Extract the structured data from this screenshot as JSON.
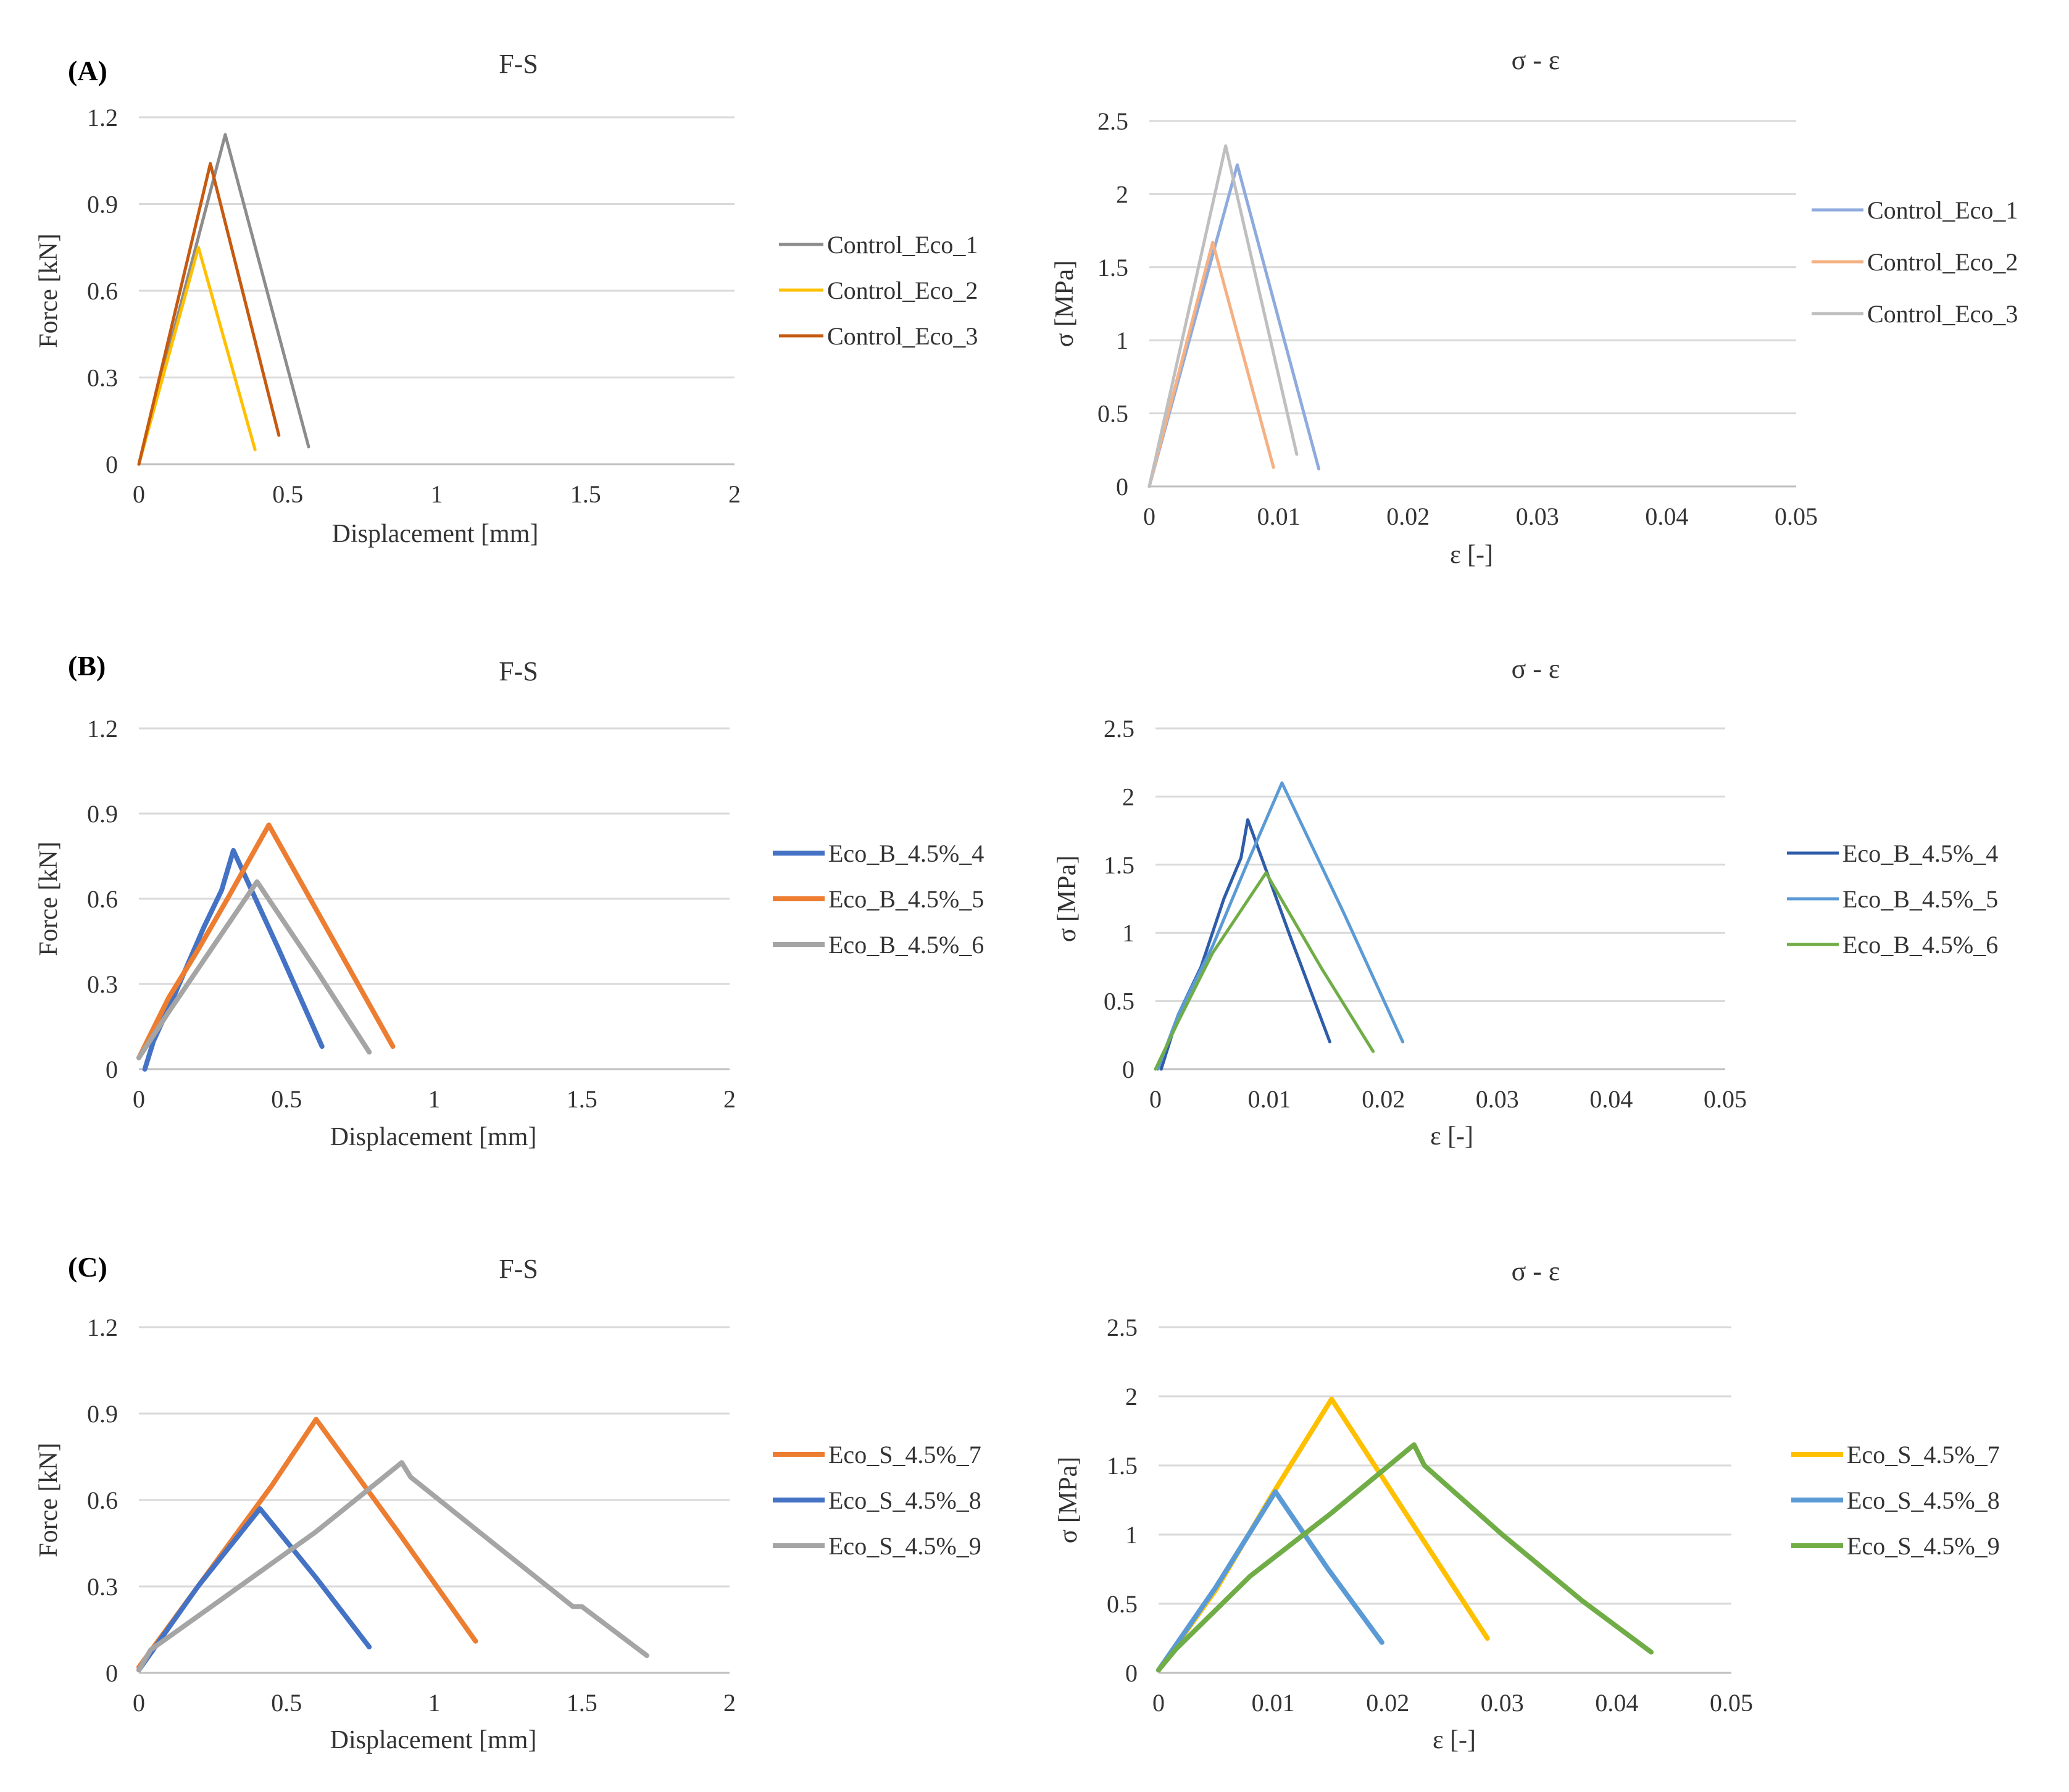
{
  "chart_data": [
    {
      "panel": "(A)",
      "type": "line",
      "title": "F-S",
      "xlabel": "Displacement [mm]",
      "ylabel": "Force [kN]",
      "xlim": [
        0,
        2
      ],
      "ylim": [
        0,
        1.2
      ],
      "xticks": [
        "0",
        "0.5",
        "1",
        "1.5",
        "2"
      ],
      "yticks": [
        "0",
        "0.3",
        "0.6",
        "0.9",
        "1.2"
      ],
      "legend_position": "right",
      "series": [
        {
          "name": "Control_Eco_1",
          "color": "#8c8c8c",
          "width": "thin",
          "points": [
            [
              0,
              0
            ],
            [
              0.29,
              1.14
            ],
            [
              0.57,
              0.06
            ]
          ]
        },
        {
          "name": "Control_Eco_2",
          "color": "#ffc000",
          "width": "thin",
          "points": [
            [
              0,
              0
            ],
            [
              0.2,
              0.75
            ],
            [
              0.39,
              0.05
            ]
          ]
        },
        {
          "name": "Control_Eco_3",
          "color": "#c55a11",
          "width": "thin",
          "points": [
            [
              0,
              0
            ],
            [
              0.24,
              1.04
            ],
            [
              0.47,
              0.1
            ]
          ]
        }
      ]
    },
    {
      "panel": "",
      "type": "line",
      "title": "σ - ε",
      "xlabel": "ε [-]",
      "ylabel": "σ [MPa]",
      "xlim": [
        0,
        0.05
      ],
      "ylim": [
        0,
        2.5
      ],
      "xticks": [
        "0",
        "0.01",
        "0.02",
        "0.03",
        "0.04",
        "0.05"
      ],
      "yticks": [
        "0",
        "0.5",
        "1",
        "1.5",
        "2",
        "2.5"
      ],
      "legend_position": "right",
      "series": [
        {
          "name": "Control_Eco_1",
          "color": "#8faadc",
          "width": "thin",
          "points": [
            [
              0,
              0
            ],
            [
              0.0068,
              2.2
            ],
            [
              0.0131,
              0.12
            ]
          ]
        },
        {
          "name": "Control_Eco_2",
          "color": "#f4b183",
          "width": "thin",
          "points": [
            [
              0,
              0
            ],
            [
              0.0049,
              1.67
            ],
            [
              0.0096,
              0.13
            ]
          ]
        },
        {
          "name": "Control_Eco_3",
          "color": "#bfbfbf",
          "width": "thin",
          "points": [
            [
              0,
              0
            ],
            [
              0.0059,
              2.33
            ],
            [
              0.0114,
              0.22
            ]
          ]
        }
      ]
    },
    {
      "panel": "(B)",
      "type": "line",
      "title": "F-S",
      "xlabel": "Displacement [mm]",
      "ylabel": "Force [kN]",
      "xlim": [
        0,
        2
      ],
      "ylim": [
        0,
        1.2
      ],
      "xticks": [
        "0",
        "0.5",
        "1",
        "1.5",
        "2"
      ],
      "yticks": [
        "0",
        "0.3",
        "0.6",
        "0.9",
        "1.2"
      ],
      "legend_position": "right",
      "series": [
        {
          "name": "Eco_B_4.5%_4",
          "color": "#4472c4",
          "width": "thick",
          "points": [
            [
              0.02,
              0
            ],
            [
              0.05,
              0.1
            ],
            [
              0.12,
              0.26
            ],
            [
              0.22,
              0.5
            ],
            [
              0.28,
              0.63
            ],
            [
              0.32,
              0.77
            ],
            [
              0.47,
              0.43
            ],
            [
              0.62,
              0.08
            ]
          ]
        },
        {
          "name": "Eco_B_4.5%_5",
          "color": "#ed7d31",
          "width": "thick",
          "points": [
            [
              0,
              0.04
            ],
            [
              0.1,
              0.25
            ],
            [
              0.2,
              0.42
            ],
            [
              0.3,
              0.6
            ],
            [
              0.44,
              0.86
            ],
            [
              0.65,
              0.47
            ],
            [
              0.86,
              0.08
            ]
          ]
        },
        {
          "name": "Eco_B_4.5%_6",
          "color": "#a5a5a5",
          "width": "thick",
          "points": [
            [
              0,
              0.04
            ],
            [
              0.1,
              0.2
            ],
            [
              0.25,
              0.43
            ],
            [
              0.4,
              0.66
            ],
            [
              0.6,
              0.35
            ],
            [
              0.78,
              0.06
            ]
          ]
        }
      ]
    },
    {
      "panel": "",
      "type": "line",
      "title": "σ - ε",
      "xlabel": "ε [-]",
      "ylabel": "σ [MPa]",
      "xlim": [
        0,
        0.05
      ],
      "ylim": [
        0,
        2.5
      ],
      "xticks": [
        "0",
        "0.01",
        "0.02",
        "0.03",
        "0.04",
        "0.05"
      ],
      "yticks": [
        "0",
        "0.5",
        "1",
        "1.5",
        "2",
        "2.5"
      ],
      "legend_position": "right",
      "series": [
        {
          "name": "Eco_B_4.5%_4",
          "color": "#2e5ca8",
          "width": "thin",
          "points": [
            [
              0.0005,
              0
            ],
            [
              0.002,
              0.4
            ],
            [
              0.004,
              0.75
            ],
            [
              0.006,
              1.25
            ],
            [
              0.0075,
              1.55
            ],
            [
              0.0081,
              1.83
            ],
            [
              0.0118,
              0.98
            ],
            [
              0.0153,
              0.2
            ]
          ]
        },
        {
          "name": "Eco_B_4.5%_5",
          "color": "#5b9bd5",
          "width": "thin",
          "points": [
            [
              0.0002,
              0
            ],
            [
              0.002,
              0.4
            ],
            [
              0.005,
              0.9
            ],
            [
              0.008,
              1.5
            ],
            [
              0.0111,
              2.1
            ],
            [
              0.0165,
              1.15
            ],
            [
              0.0217,
              0.2
            ]
          ]
        },
        {
          "name": "Eco_B_4.5%_6",
          "color": "#70ad47",
          "width": "thin",
          "points": [
            [
              0,
              0
            ],
            [
              0.002,
              0.35
            ],
            [
              0.005,
              0.85
            ],
            [
              0.0097,
              1.44
            ],
            [
              0.0145,
              0.75
            ],
            [
              0.0191,
              0.13
            ]
          ]
        }
      ]
    },
    {
      "panel": "(C)",
      "type": "line",
      "title": "F-S",
      "xlabel": "Displacement [mm]",
      "ylabel": "Force [kN]",
      "xlim": [
        0,
        2
      ],
      "ylim": [
        0,
        1.2
      ],
      "xticks": [
        "0",
        "0.5",
        "1",
        "1.5",
        "2"
      ],
      "yticks": [
        "0",
        "0.3",
        "0.6",
        "0.9",
        "1.2"
      ],
      "legend_position": "right",
      "series": [
        {
          "name": "Eco_S_4.5%_7",
          "color": "#ed7d31",
          "width": "thick",
          "points": [
            [
              0,
              0.02
            ],
            [
              0.2,
              0.3
            ],
            [
              0.45,
              0.65
            ],
            [
              0.6,
              0.88
            ],
            [
              0.87,
              0.5
            ],
            [
              1.14,
              0.11
            ]
          ]
        },
        {
          "name": "Eco_S_4.5%_8",
          "color": "#4472c4",
          "width": "thick",
          "points": [
            [
              0,
              0.01
            ],
            [
              0.2,
              0.3
            ],
            [
              0.41,
              0.57
            ],
            [
              0.6,
              0.33
            ],
            [
              0.78,
              0.09
            ]
          ]
        },
        {
          "name": "Eco_S_4.5%_9",
          "color": "#a5a5a5",
          "width": "thick",
          "points": [
            [
              0,
              0.01
            ],
            [
              0.04,
              0.08
            ],
            [
              0.3,
              0.27
            ],
            [
              0.6,
              0.49
            ],
            [
              0.89,
              0.73
            ],
            [
              0.92,
              0.68
            ],
            [
              1.2,
              0.45
            ],
            [
              1.47,
              0.23
            ],
            [
              1.5,
              0.23
            ],
            [
              1.72,
              0.06
            ]
          ]
        }
      ]
    },
    {
      "panel": "",
      "type": "line",
      "title": "σ - ε",
      "xlabel": "ε [-]",
      "ylabel": "σ [MPa]",
      "xlim": [
        0,
        0.05
      ],
      "ylim": [
        0,
        2.5
      ],
      "xticks": [
        "0",
        "0.01",
        "0.02",
        "0.03",
        "0.04",
        "0.05"
      ],
      "yticks": [
        "0",
        "0.5",
        "1",
        "1.5",
        "2",
        "2.5"
      ],
      "legend_position": "right",
      "series": [
        {
          "name": "Eco_S_4.5%_7",
          "color": "#ffc000",
          "width": "thick",
          "points": [
            [
              0,
              0.02
            ],
            [
              0.005,
              0.6
            ],
            [
              0.01,
              1.3
            ],
            [
              0.0151,
              1.98
            ],
            [
              0.022,
              1.1
            ],
            [
              0.0287,
              0.25
            ]
          ]
        },
        {
          "name": "Eco_S_4.5%_8",
          "color": "#5b9bd5",
          "width": "thick",
          "points": [
            [
              0,
              0.02
            ],
            [
              0.005,
              0.62
            ],
            [
              0.0102,
              1.31
            ],
            [
              0.0148,
              0.75
            ],
            [
              0.0195,
              0.22
            ]
          ]
        },
        {
          "name": "Eco_S_4.5%_9",
          "color": "#70ad47",
          "width": "thick",
          "points": [
            [
              0,
              0.02
            ],
            [
              0.0015,
              0.17
            ],
            [
              0.008,
              0.7
            ],
            [
              0.015,
              1.15
            ],
            [
              0.0223,
              1.65
            ],
            [
              0.0232,
              1.5
            ],
            [
              0.03,
              1.0
            ],
            [
              0.037,
              0.52
            ],
            [
              0.043,
              0.15
            ]
          ]
        }
      ]
    }
  ]
}
